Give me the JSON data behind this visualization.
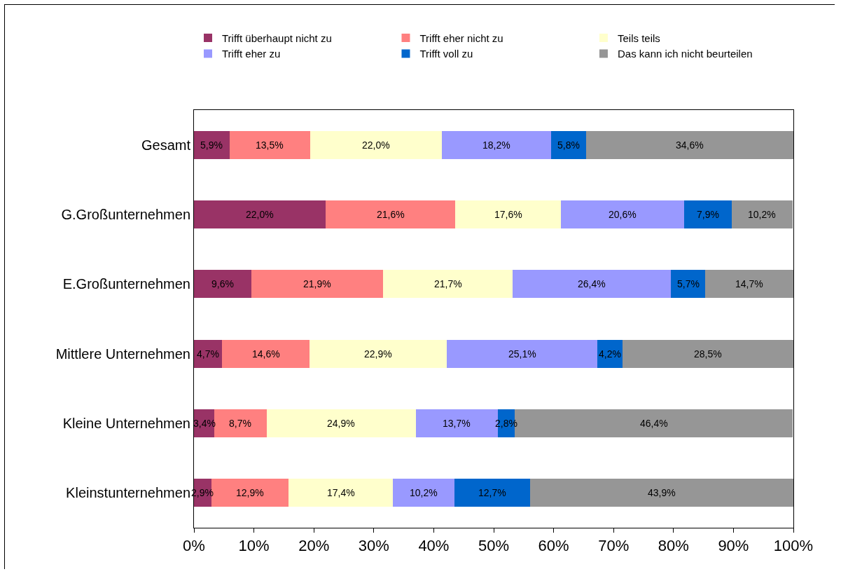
{
  "chart_data": {
    "type": "bar",
    "orientation": "horizontal",
    "stacked": true,
    "categories": [
      "Gesamt",
      "G.Großunternehmen",
      "E.Großunternehmen",
      "Mittlere Unternehmen",
      "Kleine Unternehmen",
      "Kleinstunternehmen"
    ],
    "series": [
      {
        "name": "Trifft überhaupt nicht zu",
        "color": "#993366",
        "values": [
          5.9,
          22.0,
          9.6,
          4.7,
          3.4,
          2.9
        ],
        "value_labels": [
          "5,9%",
          "22,0%",
          "9,6%",
          "4,7%",
          "3,4%",
          "2,9%"
        ]
      },
      {
        "name": "Trifft eher nicht zu",
        "color": "#ff8080",
        "values": [
          13.5,
          21.6,
          21.9,
          14.6,
          8.7,
          12.9
        ],
        "value_labels": [
          "13,5%",
          "21,6%",
          "21,9%",
          "14,6%",
          "8,7%",
          "12,9%"
        ]
      },
      {
        "name": "Teils teils",
        "color": "#ffffcc",
        "values": [
          22.0,
          17.6,
          21.7,
          22.9,
          24.9,
          17.4
        ],
        "value_labels": [
          "22,0%",
          "17,6%",
          "21,7%",
          "22,9%",
          "24,9%",
          "17,4%"
        ]
      },
      {
        "name": "Trifft eher zu",
        "color": "#9999ff",
        "values": [
          18.2,
          20.6,
          26.4,
          25.1,
          13.7,
          10.2
        ],
        "value_labels": [
          "18,2%",
          "20,6%",
          "26,4%",
          "25,1%",
          "13,7%",
          "10,2%"
        ]
      },
      {
        "name": "Trifft voll zu",
        "color": "#0066cc",
        "values": [
          5.8,
          7.9,
          5.7,
          4.2,
          2.8,
          12.7
        ],
        "value_labels": [
          "5,8%",
          "7,9%",
          "5,7%",
          "4,2%",
          "2,8%",
          "12,7%"
        ]
      },
      {
        "name": "Das kann ich nicht beurteilen",
        "color": "#969696",
        "values": [
          34.6,
          10.2,
          14.7,
          28.5,
          46.4,
          43.9
        ],
        "value_labels": [
          "34,6%",
          "10,2%",
          "14,7%",
          "28,5%",
          "46,4%",
          "43,9%"
        ]
      }
    ],
    "xlim": [
      0,
      100
    ],
    "xticks": [
      {
        "value": 0,
        "label": "0%"
      },
      {
        "value": 10,
        "label": "10%"
      },
      {
        "value": 20,
        "label": "20%"
      },
      {
        "value": 30,
        "label": "30%"
      },
      {
        "value": 40,
        "label": "40%"
      },
      {
        "value": 50,
        "label": "50%"
      },
      {
        "value": 60,
        "label": "60%"
      },
      {
        "value": 70,
        "label": "70%"
      },
      {
        "value": 80,
        "label": "80%"
      },
      {
        "value": 90,
        "label": "90%"
      },
      {
        "value": 100,
        "label": "100%"
      }
    ],
    "grid": false,
    "legend": "top"
  }
}
